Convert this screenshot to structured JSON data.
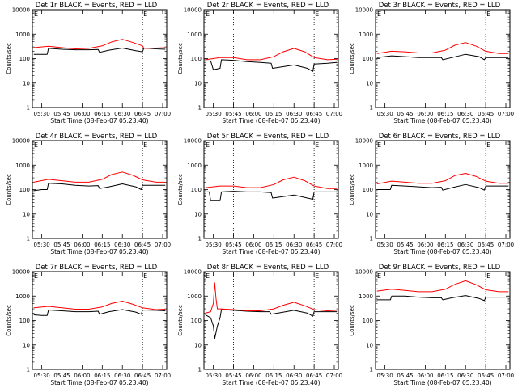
{
  "colors": {
    "background": "#ffffff",
    "axes": "#000000",
    "events": "#000000",
    "lld": "#ff0000"
  },
  "chart_data": [
    {
      "type": "line",
      "title": "Det 1r BLACK = Events, RED = LLD",
      "xlabel": "Start Time (08-Feb-07 05:23:40)",
      "ylabel": "Counts/sec",
      "yscale": "log",
      "ylim": [
        1,
        10000
      ],
      "xlim": [
        "05:23",
        "07:03"
      ],
      "xticks": [
        "05:30",
        "05:45",
        "06:00",
        "06:15",
        "06:30",
        "06:45",
        "07:00"
      ],
      "yticks": [
        "1",
        "10",
        "100",
        "1000",
        "10000"
      ],
      "vlines": [
        "05:45",
        "06:45"
      ],
      "corner_marker": "E",
      "series": [
        {
          "color": "#000000",
          "x": [
            "05:24",
            "05:30",
            "05:34",
            "05:35",
            "05:45",
            "05:55",
            "06:05",
            "06:12",
            "06:13",
            "06:20",
            "06:30",
            "06:40",
            "06:45",
            "06:46",
            "06:55",
            "07:02"
          ],
          "values": [
            150,
            150,
            150,
            260,
            240,
            230,
            230,
            235,
            180,
            220,
            270,
            210,
            190,
            270,
            250,
            240
          ]
        },
        {
          "color": "#ff0000",
          "x": [
            "05:24",
            "05:35",
            "05:45",
            "05:55",
            "06:05",
            "06:15",
            "06:22",
            "06:30",
            "06:38",
            "06:45",
            "06:46",
            "06:55",
            "07:02"
          ],
          "values": [
            280,
            320,
            280,
            250,
            260,
            330,
            480,
            610,
            450,
            330,
            260,
            270,
            280
          ]
        }
      ]
    },
    {
      "type": "line",
      "title": "Det 2r BLACK = Events, RED = LLD",
      "xlabel": "Start Time (08-Feb-07 05:23:40)",
      "ylabel": "Counts/sec",
      "yscale": "log",
      "ylim": [
        1,
        10000
      ],
      "xlim": [
        "05:23",
        "07:03"
      ],
      "xticks": [
        "05:30",
        "05:45",
        "06:00",
        "06:15",
        "06:30",
        "06:45",
        "07:00"
      ],
      "yticks": [
        "1",
        "10",
        "100",
        "1000",
        "10000"
      ],
      "vlines": [
        "05:45",
        "06:45"
      ],
      "corner_marker": "E",
      "series": [
        {
          "color": "#000000",
          "x": [
            "05:24",
            "05:28",
            "05:30",
            "05:35",
            "05:36",
            "05:45",
            "05:55",
            "06:05",
            "06:13",
            "06:14",
            "06:20",
            "06:30",
            "06:40",
            "06:44",
            "06:45",
            "06:55",
            "07:02"
          ],
          "values": [
            80,
            80,
            35,
            40,
            90,
            85,
            75,
            70,
            65,
            40,
            45,
            55,
            40,
            30,
            60,
            65,
            70
          ]
        },
        {
          "color": "#ff0000",
          "x": [
            "05:24",
            "05:35",
            "05:45",
            "05:55",
            "06:05",
            "06:15",
            "06:22",
            "06:30",
            "06:38",
            "06:45",
            "06:55",
            "07:02"
          ],
          "values": [
            90,
            110,
            110,
            90,
            90,
            120,
            190,
            260,
            190,
            110,
            90,
            95
          ]
        }
      ]
    },
    {
      "type": "line",
      "title": "Det 3r BLACK = Events, RED = LLD",
      "xlabel": "Start Time (08-Feb-07 05:23:40)",
      "ylabel": "Counts/sec",
      "yscale": "log",
      "ylim": [
        1,
        10000
      ],
      "xlim": [
        "05:23",
        "07:03"
      ],
      "xticks": [
        "05:30",
        "05:45",
        "06:00",
        "06:15",
        "06:30",
        "06:45",
        "07:00"
      ],
      "yticks": [
        "1",
        "10",
        "100",
        "1000",
        "10000"
      ],
      "vlines": [
        "05:45",
        "06:45"
      ],
      "corner_marker": "E",
      "series": [
        {
          "color": "#000000",
          "x": [
            "05:24",
            "05:35",
            "05:45",
            "05:55",
            "06:05",
            "06:12",
            "06:13",
            "06:20",
            "06:30",
            "06:40",
            "06:44",
            "06:45",
            "06:55",
            "07:02"
          ],
          "values": [
            110,
            130,
            120,
            110,
            110,
            110,
            90,
            110,
            150,
            120,
            90,
            110,
            110,
            110
          ]
        },
        {
          "color": "#ff0000",
          "x": [
            "05:24",
            "05:35",
            "05:45",
            "05:55",
            "06:05",
            "06:15",
            "06:22",
            "06:30",
            "06:38",
            "06:45",
            "06:55",
            "07:02"
          ],
          "values": [
            160,
            200,
            190,
            170,
            170,
            220,
            350,
            450,
            320,
            200,
            160,
            160
          ]
        }
      ]
    },
    {
      "type": "line",
      "title": "Det 4r BLACK = Events, RED = LLD",
      "xlabel": "Start Time (08-Feb-07 05:23:40)",
      "ylabel": "Counts/sec",
      "yscale": "log",
      "ylim": [
        1,
        10000
      ],
      "xlim": [
        "05:23",
        "07:03"
      ],
      "xticks": [
        "05:30",
        "05:45",
        "06:00",
        "06:15",
        "06:30",
        "06:45",
        "07:00"
      ],
      "yticks": [
        "1",
        "10",
        "100",
        "1000",
        "10000"
      ],
      "vlines": [
        "05:45",
        "06:45"
      ],
      "corner_marker": "E",
      "series": [
        {
          "color": "#000000",
          "x": [
            "05:24",
            "05:30",
            "05:34",
            "05:35",
            "05:45",
            "05:55",
            "06:05",
            "06:12",
            "06:13",
            "06:20",
            "06:30",
            "06:40",
            "06:44",
            "06:45",
            "06:55",
            "07:02"
          ],
          "values": [
            90,
            100,
            100,
            180,
            170,
            150,
            140,
            145,
            110,
            130,
            170,
            130,
            100,
            150,
            150,
            150
          ]
        },
        {
          "color": "#ff0000",
          "x": [
            "05:24",
            "05:35",
            "05:45",
            "05:55",
            "06:05",
            "06:15",
            "06:22",
            "06:30",
            "06:38",
            "06:45",
            "06:55",
            "07:02"
          ],
          "values": [
            200,
            260,
            230,
            200,
            200,
            260,
            410,
            520,
            380,
            250,
            200,
            200
          ]
        }
      ]
    },
    {
      "type": "line",
      "title": "Det 5r BLACK = Events, RED = LLD",
      "xlabel": "Start Time (08-Feb-07 05:23:40)",
      "ylabel": "Counts/sec",
      "yscale": "log",
      "ylim": [
        1,
        10000
      ],
      "xlim": [
        "05:23",
        "07:03"
      ],
      "xticks": [
        "05:30",
        "05:45",
        "06:00",
        "06:15",
        "06:30",
        "06:45",
        "07:00"
      ],
      "yticks": [
        "1",
        "10",
        "100",
        "1000",
        "10000"
      ],
      "vlines": [
        "05:45",
        "06:45"
      ],
      "corner_marker": "E",
      "series": [
        {
          "color": "#000000",
          "x": [
            "05:24",
            "05:27",
            "05:28",
            "05:35",
            "05:36",
            "05:45",
            "05:55",
            "06:05",
            "06:13",
            "06:14",
            "06:20",
            "06:30",
            "06:40",
            "06:44",
            "06:45",
            "06:55",
            "07:02"
          ],
          "values": [
            80,
            80,
            35,
            35,
            80,
            85,
            80,
            80,
            75,
            45,
            50,
            60,
            45,
            40,
            80,
            80,
            80
          ]
        },
        {
          "color": "#ff0000",
          "x": [
            "05:24",
            "05:35",
            "05:45",
            "05:55",
            "06:05",
            "06:15",
            "06:22",
            "06:30",
            "06:38",
            "06:45",
            "06:55",
            "07:02"
          ],
          "values": [
            120,
            140,
            140,
            120,
            120,
            160,
            250,
            320,
            230,
            140,
            110,
            110
          ]
        }
      ]
    },
    {
      "type": "line",
      "title": "Det 6r BLACK = Events, RED = LLD",
      "xlabel": "Start Time (08-Feb-07 05:23:40)",
      "ylabel": "Counts/sec",
      "yscale": "log",
      "ylim": [
        1,
        10000
      ],
      "xlim": [
        "05:23",
        "07:03"
      ],
      "xticks": [
        "05:30",
        "05:45",
        "06:00",
        "06:15",
        "06:30",
        "06:45",
        "07:00"
      ],
      "yticks": [
        "1",
        "10",
        "100",
        "1000",
        "10000"
      ],
      "vlines": [
        "05:45",
        "06:45"
      ],
      "corner_marker": "E",
      "series": [
        {
          "color": "#000000",
          "x": [
            "05:24",
            "05:34",
            "05:35",
            "05:45",
            "05:55",
            "06:05",
            "06:12",
            "06:13",
            "06:20",
            "06:30",
            "06:40",
            "06:44",
            "06:45",
            "06:55",
            "07:02"
          ],
          "values": [
            100,
            100,
            150,
            140,
            130,
            120,
            125,
            95,
            120,
            160,
            120,
            95,
            140,
            140,
            140
          ]
        },
        {
          "color": "#ff0000",
          "x": [
            "05:24",
            "05:35",
            "05:45",
            "05:55",
            "06:05",
            "06:15",
            "06:22",
            "06:30",
            "06:38",
            "06:45",
            "06:55",
            "07:02"
          ],
          "values": [
            170,
            220,
            200,
            180,
            180,
            230,
            370,
            460,
            340,
            220,
            180,
            180
          ]
        }
      ]
    },
    {
      "type": "line",
      "title": "Det 7r BLACK = Events, RED = LLD",
      "xlabel": "Start Time (08-Feb-07 05:23:40)",
      "ylabel": "Counts/sec",
      "yscale": "log",
      "ylim": [
        1,
        10000
      ],
      "xlim": [
        "05:23",
        "07:03"
      ],
      "xticks": [
        "05:30",
        "05:45",
        "06:00",
        "06:15",
        "06:30",
        "06:45",
        "07:00"
      ],
      "yticks": [
        "1",
        "10",
        "100",
        "1000",
        "10000"
      ],
      "vlines": [
        "05:45",
        "06:45"
      ],
      "corner_marker": "E",
      "series": [
        {
          "color": "#000000",
          "x": [
            "05:24",
            "05:30",
            "05:34",
            "05:35",
            "05:45",
            "05:55",
            "06:05",
            "06:12",
            "06:13",
            "06:20",
            "06:30",
            "06:40",
            "06:44",
            "06:45",
            "06:55",
            "07:02"
          ],
          "values": [
            170,
            160,
            160,
            270,
            250,
            230,
            230,
            240,
            180,
            230,
            280,
            220,
            180,
            270,
            260,
            250
          ]
        },
        {
          "color": "#ff0000",
          "x": [
            "05:24",
            "05:35",
            "05:45",
            "05:55",
            "06:05",
            "06:15",
            "06:22",
            "06:30",
            "06:38",
            "06:45",
            "06:55",
            "07:02"
          ],
          "values": [
            330,
            380,
            330,
            290,
            290,
            360,
            500,
            620,
            460,
            330,
            280,
            290
          ]
        }
      ]
    },
    {
      "type": "line",
      "title": "Det 8r BLACK = Events, RED = LLD",
      "xlabel": "Start Time (08-Feb-07 05:23:40)",
      "ylabel": "Counts/sec",
      "yscale": "log",
      "ylim": [
        1,
        10000
      ],
      "xlim": [
        "05:23",
        "07:03"
      ],
      "xticks": [
        "05:30",
        "05:45",
        "06:00",
        "06:15",
        "06:30",
        "06:45",
        "07:00"
      ],
      "yticks": [
        "1",
        "10",
        "100",
        "1000",
        "10000"
      ],
      "vlines": [
        "05:45",
        "06:45"
      ],
      "corner_marker": "E",
      "series": [
        {
          "color": "#000000",
          "x": [
            "05:24",
            "05:28",
            "05:30",
            "05:31",
            "05:33",
            "05:35",
            "05:36",
            "05:45",
            "05:55",
            "06:05",
            "06:12",
            "06:13",
            "06:20",
            "06:30",
            "06:40",
            "06:44",
            "06:45",
            "06:55",
            "07:02"
          ],
          "values": [
            170,
            130,
            60,
            18,
            60,
            130,
            280,
            260,
            240,
            230,
            230,
            180,
            210,
            260,
            200,
            150,
            230,
            230,
            230
          ]
        },
        {
          "color": "#ff0000",
          "x": [
            "05:24",
            "05:28",
            "05:30",
            "05:31",
            "05:32",
            "05:33",
            "05:35",
            "05:45",
            "05:55",
            "06:05",
            "06:15",
            "06:22",
            "06:30",
            "06:38",
            "06:45",
            "06:55",
            "07:02"
          ],
          "values": [
            200,
            230,
            500,
            3500,
            800,
            300,
            300,
            280,
            250,
            250,
            300,
            420,
            560,
            400,
            280,
            250,
            260
          ]
        }
      ]
    },
    {
      "type": "line",
      "title": "Det 9r BLACK = Events, RED = LLD",
      "xlabel": "Start Time (08-Feb-07 05:23:40)",
      "ylabel": "Counts/sec",
      "yscale": "log",
      "ylim": [
        1,
        10000
      ],
      "xlim": [
        "05:23",
        "07:03"
      ],
      "xticks": [
        "05:30",
        "05:45",
        "06:00",
        "06:15",
        "06:30",
        "06:45",
        "07:00"
      ],
      "yticks": [
        "1",
        "10",
        "100",
        "1000",
        "10000"
      ],
      "vlines": [
        "05:45",
        "06:45"
      ],
      "corner_marker": "E",
      "series": [
        {
          "color": "#000000",
          "x": [
            "05:24",
            "05:34",
            "05:35",
            "05:45",
            "05:55",
            "06:05",
            "06:12",
            "06:13",
            "06:20",
            "06:30",
            "06:40",
            "06:44",
            "06:45",
            "06:55",
            "07:02"
          ],
          "values": [
            700,
            700,
            1000,
            1000,
            900,
            850,
            850,
            700,
            850,
            1050,
            800,
            650,
            900,
            900,
            900
          ]
        },
        {
          "color": "#ff0000",
          "x": [
            "05:24",
            "05:35",
            "05:45",
            "05:55",
            "06:05",
            "06:15",
            "06:22",
            "06:30",
            "06:38",
            "06:45",
            "06:55",
            "07:02"
          ],
          "values": [
            1600,
            1900,
            1700,
            1500,
            1500,
            1900,
            3000,
            4200,
            2900,
            1800,
            1500,
            1500
          ]
        }
      ]
    }
  ]
}
